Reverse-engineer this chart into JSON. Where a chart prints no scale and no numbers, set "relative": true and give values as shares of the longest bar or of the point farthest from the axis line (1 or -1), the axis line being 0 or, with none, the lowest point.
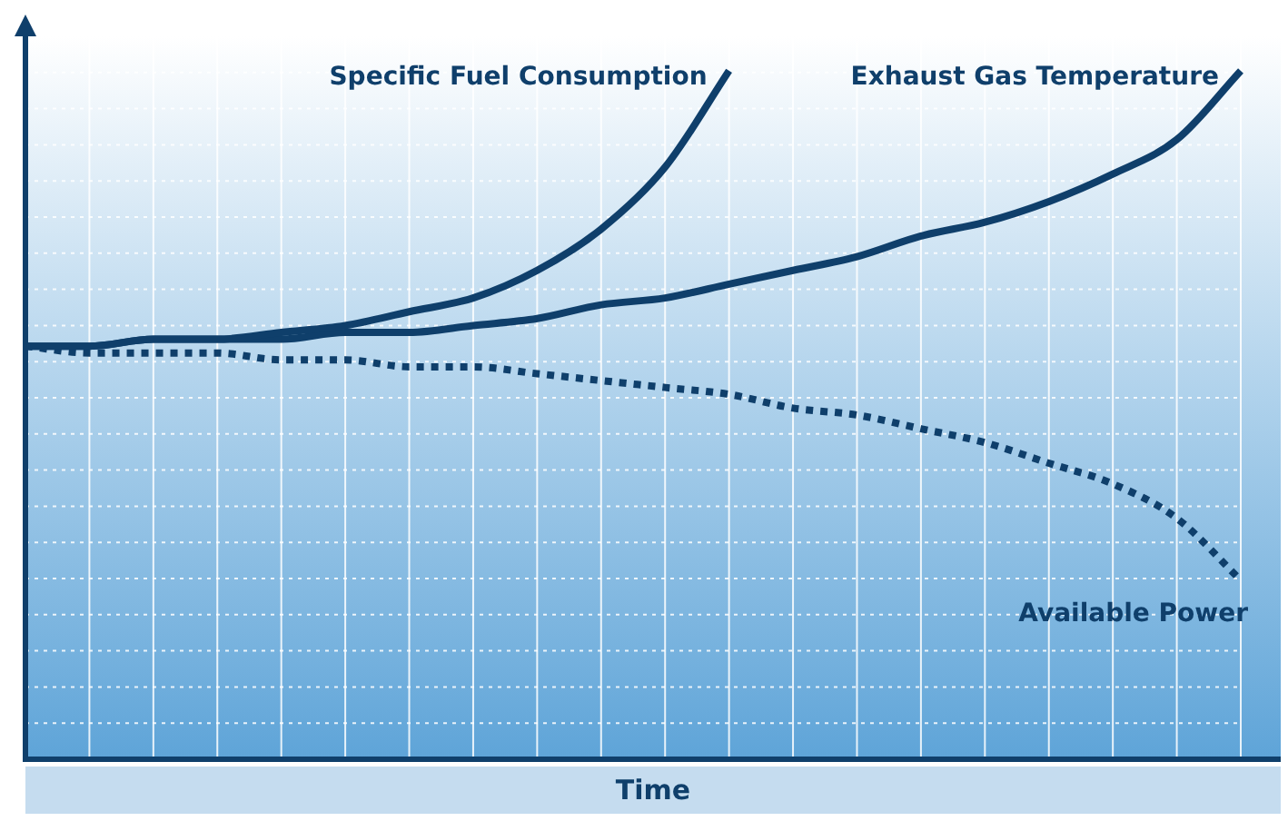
{
  "chart_data": {
    "type": "line",
    "relative": true,
    "xlabel": "Time",
    "grid": true,
    "legend": false,
    "marker": "none",
    "categories": [
      null,
      null,
      null,
      null,
      null,
      null,
      null,
      null,
      null,
      null,
      null,
      null,
      null,
      null,
      null,
      null,
      null,
      null,
      null,
      null
    ],
    "series": [
      {
        "name": "Specific Fuel Consumption",
        "color": "#0f3f6b",
        "line_style": "solid",
        "values": [
          0.6,
          0.6,
          0.61,
          0.61,
          0.62,
          0.63,
          0.65,
          0.67,
          0.71,
          0.77,
          0.86,
          1.0,
          null,
          null,
          null,
          null,
          null,
          null,
          null,
          null
        ]
      },
      {
        "name": "Exhaust Gas Temperature",
        "color": "#0f3f6b",
        "line_style": "solid",
        "values": [
          0.6,
          0.6,
          0.61,
          0.61,
          0.61,
          0.62,
          0.62,
          0.63,
          0.64,
          0.66,
          0.67,
          0.69,
          0.71,
          0.73,
          0.76,
          0.78,
          0.81,
          0.85,
          0.9,
          1.0
        ]
      },
      {
        "name": "Available Power",
        "color": "#0f3f6b",
        "line_style": "dotted",
        "values": [
          0.6,
          0.59,
          0.59,
          0.59,
          0.58,
          0.58,
          0.57,
          0.57,
          0.56,
          0.55,
          0.54,
          0.53,
          0.51,
          0.5,
          0.48,
          0.46,
          0.43,
          0.4,
          0.35,
          0.26
        ]
      }
    ]
  }
}
